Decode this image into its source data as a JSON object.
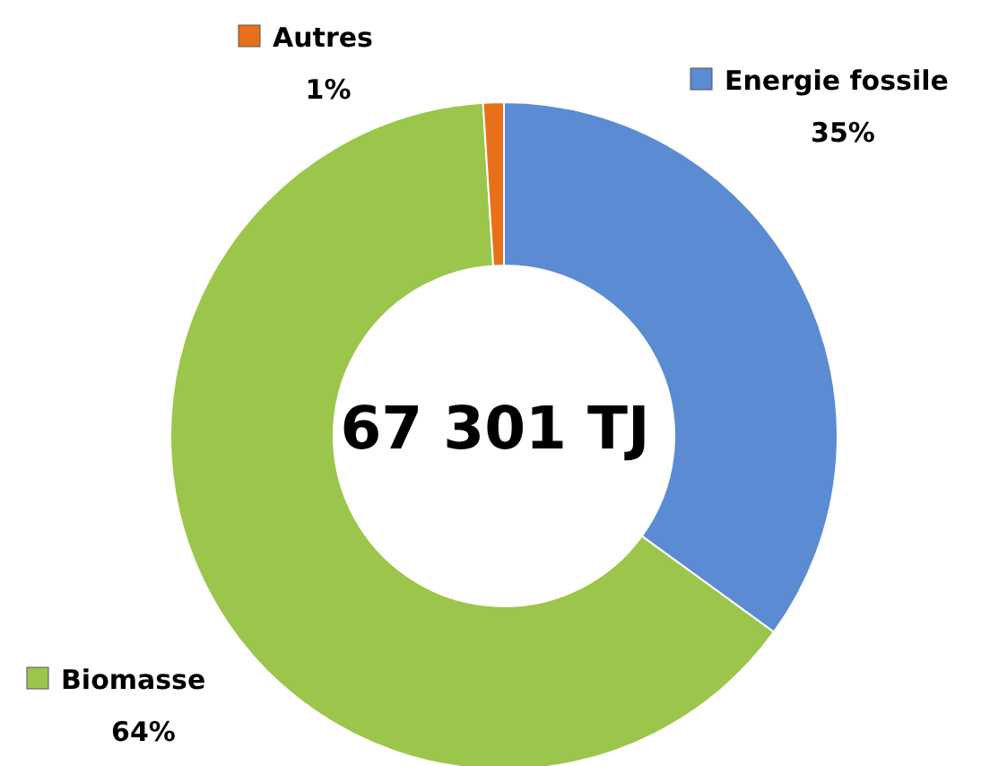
{
  "chart_data": {
    "type": "donut",
    "categories": [
      "Energie fossile",
      "Biomasse",
      "Autres"
    ],
    "values": [
      35,
      64,
      1
    ],
    "value_labels": [
      "35%",
      "64%",
      "1%"
    ],
    "colors": [
      "#5b8bd2",
      "#9cc64b",
      "#e8701a"
    ],
    "annotations": [
      "67 301 TJ"
    ],
    "legend": "top right"
  }
}
